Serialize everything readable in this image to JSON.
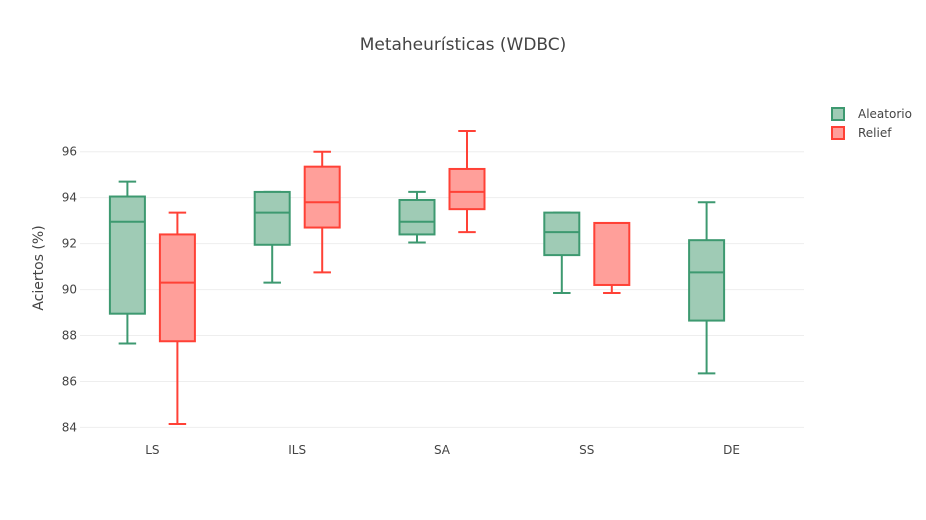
{
  "chart_data": {
    "type": "box",
    "title": "Metaheurísticas (WDBC)",
    "xlabel": "",
    "ylabel": "Aciertos (%)",
    "ylim": [
      83.8,
      98.6
    ],
    "yticks": [
      84,
      86,
      88,
      90,
      92,
      94,
      96
    ],
    "categories": [
      "LS",
      "ILS",
      "SA",
      "SS",
      "DE"
    ],
    "grid": true,
    "legend_position": "top-right",
    "series": [
      {
        "name": "Aleatorio",
        "color": "#3d9970",
        "fill": "#9fcbb5",
        "boxes": [
          {
            "category": "LS",
            "min": 87.65,
            "q1": 88.95,
            "median": 92.95,
            "q3": 94.05,
            "max": 94.7
          },
          {
            "category": "ILS",
            "min": 90.3,
            "q1": 91.95,
            "median": 93.35,
            "q3": 94.25,
            "max": 94.25
          },
          {
            "category": "SA",
            "min": 92.05,
            "q1": 92.4,
            "median": 92.95,
            "q3": 93.9,
            "max": 94.25
          },
          {
            "category": "SS",
            "min": 89.85,
            "q1": 91.5,
            "median": 92.5,
            "q3": 93.35,
            "max": 93.35
          },
          {
            "category": "DE",
            "min": 86.35,
            "q1": 88.65,
            "median": 90.75,
            "q3": 92.15,
            "max": 93.8
          }
        ]
      },
      {
        "name": "Relief",
        "color": "#ff4136",
        "fill": "#ff9f9a",
        "boxes": [
          {
            "category": "LS",
            "min": 84.15,
            "q1": 87.75,
            "median": 90.3,
            "q3": 92.4,
            "max": 93.35
          },
          {
            "category": "ILS",
            "min": 90.75,
            "q1": 92.7,
            "median": 93.8,
            "q3": 95.35,
            "max": 96.0
          },
          {
            "category": "SA",
            "min": 92.5,
            "q1": 93.5,
            "median": 94.25,
            "q3": 95.25,
            "max": 96.9
          },
          {
            "category": "SS",
            "min": 89.85,
            "q1": 90.2,
            "median": 92.9,
            "q3": 92.9,
            "max": 92.9
          }
        ]
      }
    ]
  }
}
